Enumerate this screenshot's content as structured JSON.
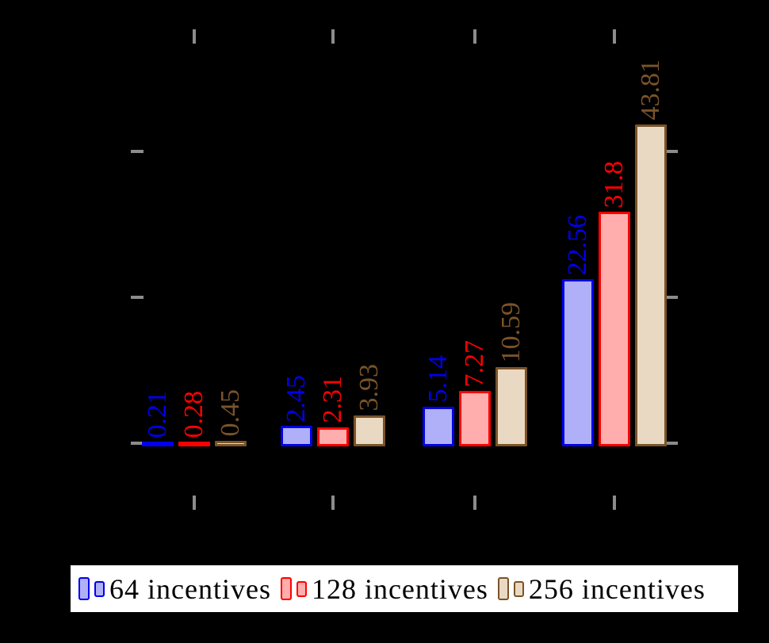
{
  "canvas": {
    "background": "#000000",
    "tick_color": "#8c8c8c"
  },
  "chart_data": {
    "type": "bar",
    "title": "",
    "xlabel": "",
    "ylabel": "",
    "group_count": 4,
    "series": [
      {
        "name": "64 incentives",
        "values": [
          0.21,
          2.45,
          5.14,
          22.56
        ],
        "labels": [
          "0.21",
          "2.45",
          "5.14",
          "22.56"
        ],
        "border_color": "#0000ee",
        "fill_color": "#b0b0f8"
      },
      {
        "name": "128 incentives",
        "values": [
          0.28,
          2.31,
          7.27,
          31.8
        ],
        "labels": [
          "0.28",
          "2.31",
          "7.27",
          "31.8"
        ],
        "border_color": "#ff0000",
        "fill_color": "#ffadad"
      },
      {
        "name": "256 incentives",
        "values": [
          0.45,
          3.93,
          10.59,
          43.81
        ],
        "labels": [
          "0.45",
          "3.93",
          "10.59",
          "43.81"
        ],
        "border_color": "#7a5329",
        "fill_color": "#ead9c2"
      }
    ],
    "axes": {
      "x_tick_mark_count": 4,
      "y_tick_mark_count": 3,
      "y_tick_values_estimated": [
        0,
        20,
        40
      ],
      "ylim_estimated": [
        0,
        50
      ],
      "tick_labels_visible": false,
      "ticks_mirrored": true,
      "grid": false
    },
    "legend": {
      "position": "bottom",
      "entries": [
        "64 incentives",
        "128 incentives",
        "256 incentives"
      ]
    }
  }
}
